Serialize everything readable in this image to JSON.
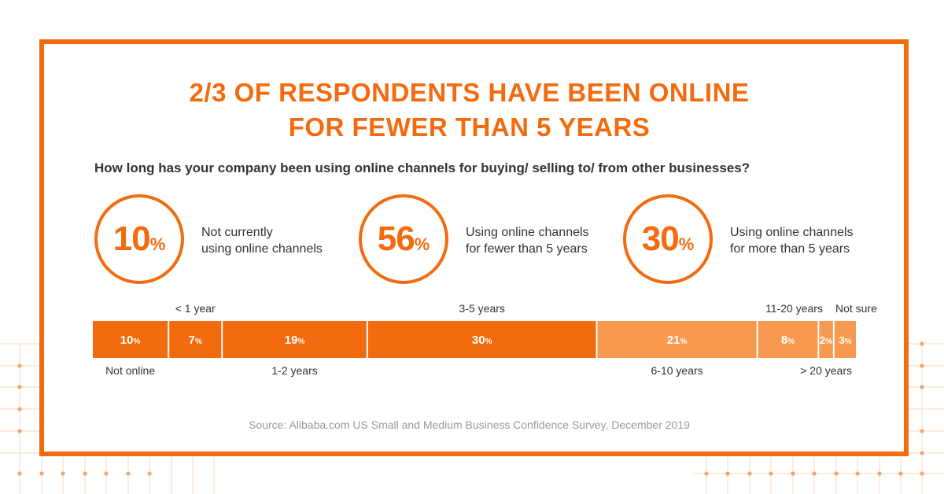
{
  "title_lines": [
    "2/3 OF RESPONDENTS HAVE BEEN ONLINE",
    "FOR FEWER THAN 5 YEARS"
  ],
  "question": "How long has your company been using online channels for buying/ selling to/ from other businesses?",
  "stats": [
    {
      "value": "10",
      "unit": "%",
      "label_lines": [
        "Not currently",
        "using online channels"
      ]
    },
    {
      "value": "56",
      "unit": "%",
      "label_lines": [
        "Using online channels",
        "for fewer than 5 years"
      ]
    },
    {
      "value": "30",
      "unit": "%",
      "label_lines": [
        "Using online channels",
        "for more than 5 years"
      ]
    }
  ],
  "source": "Source: Alibaba.com US Small and Medium Business Confidence Survey, December 2019",
  "colors": {
    "accent": "#f26b0f",
    "light": "#f79a4f",
    "text": "#333333",
    "muted": "#999999"
  },
  "chart_data": {
    "type": "bar",
    "orientation": "horizontal-stacked",
    "unit": "%",
    "categories": [
      "Not online",
      "< 1 year",
      "1-2 years",
      "3-5 years",
      "6-10 years",
      "11-20 years",
      "> 20 years",
      "Not sure"
    ],
    "values": [
      10,
      7,
      19,
      30,
      21,
      8,
      2,
      3
    ],
    "label_side": [
      "below",
      "above",
      "below",
      "above",
      "below",
      "above",
      "below",
      "above"
    ],
    "segment_shade": [
      "dark",
      "dark",
      "dark",
      "dark",
      "light",
      "light",
      "light",
      "light"
    ]
  }
}
